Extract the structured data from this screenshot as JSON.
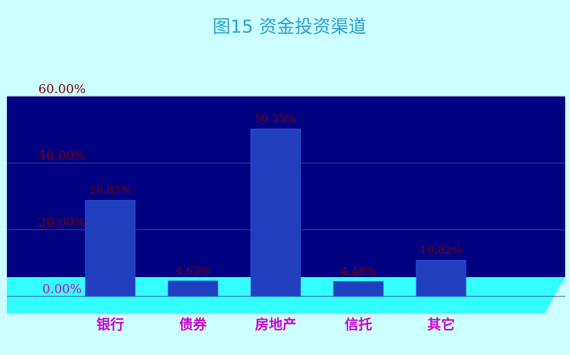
{
  "chart_data": {
    "type": "bar",
    "title": "图15 资金投资渠道",
    "categories": [
      "银行",
      "债券",
      "房地产",
      "信托",
      "其它"
    ],
    "values": [
      28.82,
      4.63,
      50.25,
      4.48,
      10.82
    ],
    "value_labels": [
      "28.82%",
      "4.63%",
      "50.25%",
      "4.48%",
      "10.82%"
    ],
    "color": "#1f3fbf",
    "ylim": [
      0,
      60
    ],
    "yticks": [
      {
        "value": 0,
        "label": "0.00%"
      },
      {
        "value": 20,
        "label": "20.00%"
      },
      {
        "value": 40,
        "label": "40.00%"
      },
      {
        "value": 60,
        "label": "60.00%"
      }
    ],
    "grid": true
  }
}
